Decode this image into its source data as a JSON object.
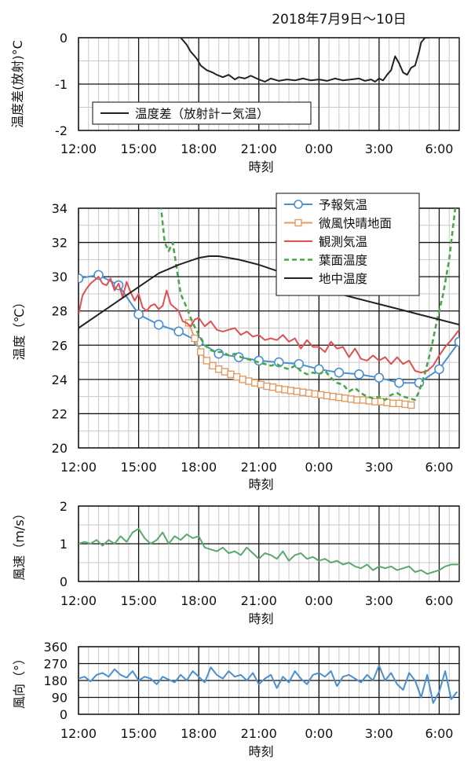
{
  "title": "2018年7月9日～10日",
  "chart_data": [
    {
      "type": "line",
      "ylabel": "温度差(放射)°C",
      "xlabel": "時刻",
      "ylim": [
        -2,
        0
      ],
      "yticks": [
        0,
        -1,
        -2
      ],
      "xlim": [
        0,
        19
      ],
      "xticks": [
        {
          "v": 0,
          "label": "12:00"
        },
        {
          "v": 3,
          "label": "15:00"
        },
        {
          "v": 6,
          "label": "18:00"
        },
        {
          "v": 9,
          "label": "21:00"
        },
        {
          "v": 12,
          "label": "0:00"
        },
        {
          "v": 15,
          "label": "3:00"
        },
        {
          "v": 18,
          "label": "6:00"
        }
      ],
      "legend": "inside-left-bottom",
      "series": [
        {
          "name": "温度差（放射計ー気温）",
          "color": "#222222",
          "x": [
            5.1,
            5.4,
            5.6,
            5.9,
            6.1,
            6.4,
            6.7,
            6.9,
            7.2,
            7.5,
            7.8,
            8.0,
            8.3,
            8.6,
            9.0,
            9.3,
            9.6,
            10.0,
            10.4,
            10.8,
            11.2,
            11.6,
            12.0,
            12.4,
            12.8,
            13.2,
            13.6,
            14.0,
            14.3,
            14.6,
            14.8,
            15.0,
            15.2,
            15.4,
            15.6,
            15.8,
            16.0,
            16.2,
            16.4,
            16.6,
            16.8,
            17.0,
            17.1,
            17.3,
            17.5
          ],
          "y": [
            0.0,
            -0.15,
            -0.3,
            -0.45,
            -0.6,
            -0.7,
            -0.75,
            -0.8,
            -0.85,
            -0.8,
            -0.9,
            -0.85,
            -0.88,
            -0.82,
            -0.9,
            -0.95,
            -0.88,
            -0.93,
            -0.9,
            -0.92,
            -0.88,
            -0.92,
            -0.9,
            -0.93,
            -0.88,
            -0.92,
            -0.9,
            -0.88,
            -0.93,
            -0.9,
            -0.95,
            -0.88,
            -0.92,
            -0.8,
            -0.7,
            -0.4,
            -0.55,
            -0.75,
            -0.8,
            -0.65,
            -0.6,
            -0.3,
            -0.1,
            0.0,
            0.0
          ]
        }
      ]
    },
    {
      "type": "line",
      "ylabel": "温度（℃）",
      "xlabel": "時刻",
      "ylim": [
        20,
        34
      ],
      "yticks": [
        20,
        22,
        24,
        26,
        28,
        30,
        32,
        34
      ],
      "xlim": [
        0,
        19
      ],
      "xticks": [
        {
          "v": 0,
          "label": "12:00"
        },
        {
          "v": 3,
          "label": "15:00"
        },
        {
          "v": 6,
          "label": "18:00"
        },
        {
          "v": 9,
          "label": "21:00"
        },
        {
          "v": 12,
          "label": "0:00"
        },
        {
          "v": 15,
          "label": "3:00"
        },
        {
          "v": 18,
          "label": "6:00"
        }
      ],
      "legend": "top-right",
      "series": [
        {
          "name": "予報気温",
          "color": "#4a8fd0",
          "marker": "circle",
          "x": [
            0,
            1,
            2,
            3,
            4,
            5,
            6,
            7,
            8,
            9,
            10,
            11,
            12,
            13,
            14,
            15,
            16,
            17,
            18,
            19
          ],
          "y": [
            29.9,
            30.1,
            29.5,
            27.8,
            27.2,
            26.8,
            26.2,
            25.5,
            25.3,
            25.1,
            25.0,
            24.9,
            24.6,
            24.4,
            24.3,
            24.1,
            23.8,
            23.8,
            24.6,
            26.2
          ]
        },
        {
          "name": "微風快晴地面",
          "color": "#e39a60",
          "marker": "square",
          "x": [
            5.5,
            5.8,
            6.1,
            6.4,
            6.7,
            7.0,
            7.3,
            7.6,
            7.9,
            8.2,
            8.5,
            8.8,
            9.1,
            9.4,
            9.7,
            10.0,
            10.3,
            10.6,
            10.9,
            11.2,
            11.5,
            11.8,
            12.1,
            12.4,
            12.7,
            13.0,
            13.3,
            13.6,
            13.9,
            14.2,
            14.5,
            14.8,
            15.1,
            15.4,
            15.7,
            16.0,
            16.3,
            16.6
          ],
          "y": [
            27.3,
            26.4,
            25.6,
            25.1,
            24.8,
            24.6,
            24.45,
            24.3,
            24.15,
            24.0,
            23.9,
            23.8,
            23.7,
            23.6,
            23.55,
            23.45,
            23.4,
            23.35,
            23.3,
            23.25,
            23.2,
            23.15,
            23.1,
            23.05,
            23.0,
            22.95,
            22.9,
            22.85,
            22.8,
            22.8,
            22.75,
            22.7,
            22.7,
            22.65,
            22.6,
            22.6,
            22.55,
            22.5
          ]
        },
        {
          "name": "観測気温",
          "color": "#e05050",
          "x": [
            0,
            0.2,
            0.4,
            0.6,
            0.8,
            1.0,
            1.2,
            1.4,
            1.6,
            1.8,
            2.0,
            2.2,
            2.4,
            2.6,
            2.8,
            3.0,
            3.2,
            3.4,
            3.6,
            3.8,
            4.0,
            4.2,
            4.4,
            4.6,
            4.8,
            5.0,
            5.2,
            5.4,
            5.6,
            5.8,
            6.0,
            6.3,
            6.6,
            6.9,
            7.2,
            7.5,
            7.8,
            8.1,
            8.4,
            8.7,
            9.0,
            9.3,
            9.6,
            9.9,
            10.2,
            10.5,
            10.8,
            11.1,
            11.4,
            11.7,
            12.0,
            12.3,
            12.6,
            12.9,
            13.2,
            13.5,
            13.8,
            14.1,
            14.4,
            14.7,
            15.0,
            15.3,
            15.6,
            15.9,
            16.2,
            16.5,
            16.8,
            17.1,
            17.4,
            17.7,
            18.0,
            18.3,
            18.6,
            19.0
          ],
          "y": [
            27.8,
            28.9,
            29.3,
            29.6,
            29.8,
            30.0,
            29.6,
            29.5,
            29.9,
            29.2,
            29.6,
            28.8,
            29.7,
            29.1,
            28.6,
            29.0,
            28.2,
            28.0,
            28.3,
            28.4,
            28.1,
            28.3,
            29.2,
            28.4,
            28.2,
            28.0,
            27.4,
            27.3,
            27.1,
            27.5,
            27.6,
            27.1,
            27.4,
            26.9,
            26.8,
            26.9,
            27.0,
            26.6,
            26.8,
            26.5,
            26.6,
            26.3,
            26.4,
            26.3,
            26.6,
            26.2,
            26.4,
            25.8,
            26.3,
            25.9,
            25.9,
            25.6,
            26.2,
            25.8,
            25.9,
            25.3,
            25.8,
            25.2,
            25.1,
            25.4,
            25.1,
            25.3,
            24.9,
            25.3,
            24.9,
            25.1,
            24.5,
            24.4,
            24.5,
            24.8,
            25.4,
            25.9,
            26.3,
            26.9
          ]
        },
        {
          "name": "葉面温度",
          "color": "#4aa84a",
          "dashed": true,
          "x": [
            4.1,
            4.3,
            4.5,
            4.7,
            4.9,
            5.1,
            5.4,
            5.7,
            6.0,
            6.3,
            6.6,
            6.9,
            7.2,
            7.5,
            7.8,
            8.1,
            8.4,
            8.7,
            9.0,
            9.3,
            9.6,
            9.9,
            10.2,
            10.5,
            10.8,
            11.1,
            11.4,
            11.7,
            12.0,
            12.3,
            12.6,
            12.9,
            13.2,
            13.5,
            13.8,
            14.1,
            14.4,
            14.7,
            15.0,
            15.3,
            15.6,
            15.9,
            16.2,
            16.5,
            16.8,
            17.0,
            17.3,
            17.6,
            17.9,
            18.2,
            18.5,
            18.8
          ],
          "y": [
            34.2,
            32.0,
            31.5,
            32.0,
            30.5,
            29.0,
            28.2,
            27.3,
            26.6,
            26.0,
            25.7,
            25.6,
            25.6,
            25.4,
            25.5,
            25.3,
            25.2,
            25.1,
            25.0,
            24.9,
            24.8,
            24.9,
            24.7,
            24.6,
            24.8,
            24.5,
            24.3,
            24.4,
            24.3,
            24.5,
            24.1,
            23.8,
            23.7,
            23.3,
            23.5,
            23.2,
            23.0,
            22.9,
            23.0,
            22.8,
            23.1,
            23.2,
            23.0,
            22.9,
            22.8,
            23.3,
            24.4,
            25.8,
            27.5,
            29.0,
            31.0,
            34.0
          ]
        },
        {
          "name": "地中温度",
          "color": "#222222",
          "x": [
            0,
            1,
            2,
            3,
            4,
            5,
            6,
            6.5,
            7,
            8,
            9,
            10,
            11,
            12,
            13,
            14,
            15,
            16,
            17,
            18,
            19
          ],
          "y": [
            27.0,
            27.8,
            28.6,
            29.4,
            30.2,
            30.7,
            31.1,
            31.2,
            31.2,
            31.0,
            30.7,
            30.3,
            29.8,
            29.4,
            29.0,
            28.7,
            28.4,
            28.1,
            27.8,
            27.5,
            27.2
          ]
        }
      ]
    },
    {
      "type": "line",
      "ylabel": "風速（m/s）",
      "xlabel": "時刻",
      "ylim": [
        0,
        2
      ],
      "yticks": [
        0,
        1,
        2
      ],
      "xlim": [
        0,
        19
      ],
      "xticks": [
        {
          "v": 0,
          "label": "12:00"
        },
        {
          "v": 3,
          "label": "15:00"
        },
        {
          "v": 6,
          "label": "18:00"
        },
        {
          "v": 9,
          "label": "21:00"
        },
        {
          "v": 12,
          "label": "0:00"
        },
        {
          "v": 15,
          "label": "3:00"
        },
        {
          "v": 18,
          "label": "6:00"
        }
      ],
      "series": [
        {
          "name": "",
          "color": "#5aa86a",
          "x": [
            0,
            0.3,
            0.6,
            0.9,
            1.2,
            1.5,
            1.8,
            2.1,
            2.4,
            2.7,
            3.0,
            3.3,
            3.6,
            3.9,
            4.2,
            4.5,
            4.8,
            5.1,
            5.4,
            5.7,
            6.0,
            6.3,
            6.6,
            6.9,
            7.2,
            7.5,
            7.8,
            8.1,
            8.4,
            8.7,
            9.0,
            9.3,
            9.6,
            9.9,
            10.2,
            10.5,
            10.8,
            11.1,
            11.4,
            11.7,
            12.0,
            12.3,
            12.6,
            12.9,
            13.2,
            13.5,
            13.8,
            14.1,
            14.4,
            14.7,
            15.0,
            15.3,
            15.6,
            15.9,
            16.2,
            16.5,
            16.8,
            17.1,
            17.4,
            17.7,
            18.0,
            18.3,
            18.6,
            19.0
          ],
          "y": [
            1.0,
            1.05,
            1.0,
            1.1,
            0.95,
            1.1,
            1.0,
            1.2,
            1.05,
            1.3,
            1.4,
            1.15,
            1.0,
            1.1,
            1.3,
            1.0,
            1.2,
            1.1,
            1.25,
            1.15,
            1.2,
            0.9,
            0.85,
            0.8,
            0.9,
            0.75,
            0.8,
            0.7,
            0.9,
            0.75,
            0.6,
            0.75,
            0.7,
            0.6,
            0.8,
            0.55,
            0.7,
            0.75,
            0.6,
            0.65,
            0.55,
            0.6,
            0.5,
            0.55,
            0.45,
            0.5,
            0.4,
            0.35,
            0.45,
            0.3,
            0.4,
            0.35,
            0.4,
            0.3,
            0.35,
            0.4,
            0.25,
            0.3,
            0.2,
            0.25,
            0.3,
            0.4,
            0.45,
            0.45
          ]
        }
      ]
    },
    {
      "type": "line",
      "ylabel": "風向（°）",
      "xlabel": "時刻",
      "ylim": [
        0,
        360
      ],
      "yticks": [
        0,
        90,
        180,
        270,
        360
      ],
      "xlim": [
        0,
        19
      ],
      "xticks": [
        {
          "v": 0,
          "label": "12:00"
        },
        {
          "v": 3,
          "label": "15:00"
        },
        {
          "v": 6,
          "label": "18:00"
        },
        {
          "v": 9,
          "label": "21:00"
        },
        {
          "v": 12,
          "label": "0:00"
        },
        {
          "v": 15,
          "label": "3:00"
        },
        {
          "v": 18,
          "label": "6:00"
        }
      ],
      "series": [
        {
          "name": "",
          "color": "#4a8fd0",
          "x": [
            0,
            0.3,
            0.6,
            0.9,
            1.2,
            1.5,
            1.8,
            2.1,
            2.4,
            2.7,
            3.0,
            3.3,
            3.6,
            3.9,
            4.2,
            4.5,
            4.8,
            5.1,
            5.4,
            5.7,
            6.0,
            6.3,
            6.6,
            6.9,
            7.2,
            7.5,
            7.8,
            8.1,
            8.4,
            8.7,
            9.0,
            9.3,
            9.6,
            9.9,
            10.2,
            10.5,
            10.8,
            11.1,
            11.4,
            11.7,
            12.0,
            12.3,
            12.6,
            12.9,
            13.2,
            13.5,
            13.8,
            14.1,
            14.4,
            14.7,
            15.0,
            15.3,
            15.6,
            15.9,
            16.2,
            16.5,
            16.8,
            17.1,
            17.4,
            17.7,
            18.0,
            18.3,
            18.6,
            18.9
          ],
          "y": [
            190,
            200,
            175,
            210,
            220,
            200,
            240,
            210,
            195,
            230,
            180,
            200,
            190,
            160,
            200,
            185,
            170,
            210,
            180,
            230,
            200,
            170,
            250,
            210,
            190,
            230,
            200,
            210,
            180,
            220,
            160,
            190,
            210,
            140,
            200,
            170,
            230,
            190,
            160,
            210,
            220,
            200,
            230,
            150,
            200,
            210,
            190,
            170,
            210,
            180,
            260,
            180,
            220,
            160,
            130,
            220,
            180,
            90,
            210,
            60,
            120,
            230,
            80,
            120
          ]
        }
      ]
    }
  ]
}
